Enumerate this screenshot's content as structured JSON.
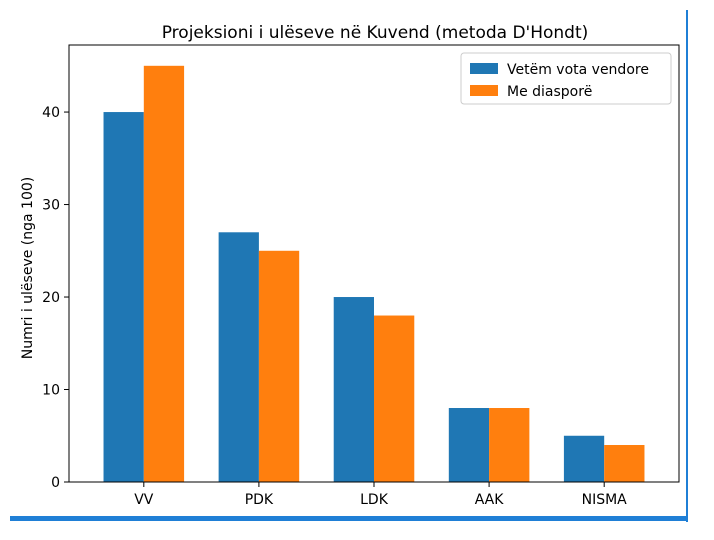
{
  "theme": {
    "frame_color": "#1f7fd6",
    "series_colors": [
      "#1f77b4",
      "#ff7f0e"
    ]
  },
  "chart_data": {
    "type": "bar",
    "title": "Projeksioni i ulëseve në Kuvend (metoda D'Hondt)",
    "xlabel": "",
    "ylabel": "Numri i ulëseve (nga 100)",
    "categories": [
      "VV",
      "PDK",
      "LDK",
      "AAK",
      "NISMA"
    ],
    "series": [
      {
        "name": "Vetëm vota vendore",
        "values": [
          40,
          27,
          20,
          8,
          5
        ]
      },
      {
        "name": "Me diasporë",
        "values": [
          45,
          25,
          18,
          8,
          4
        ]
      }
    ],
    "ylim": [
      0,
      47.25
    ],
    "yticks": [
      0,
      10,
      20,
      30,
      40
    ],
    "grid": false,
    "legend_position": "top-right"
  }
}
